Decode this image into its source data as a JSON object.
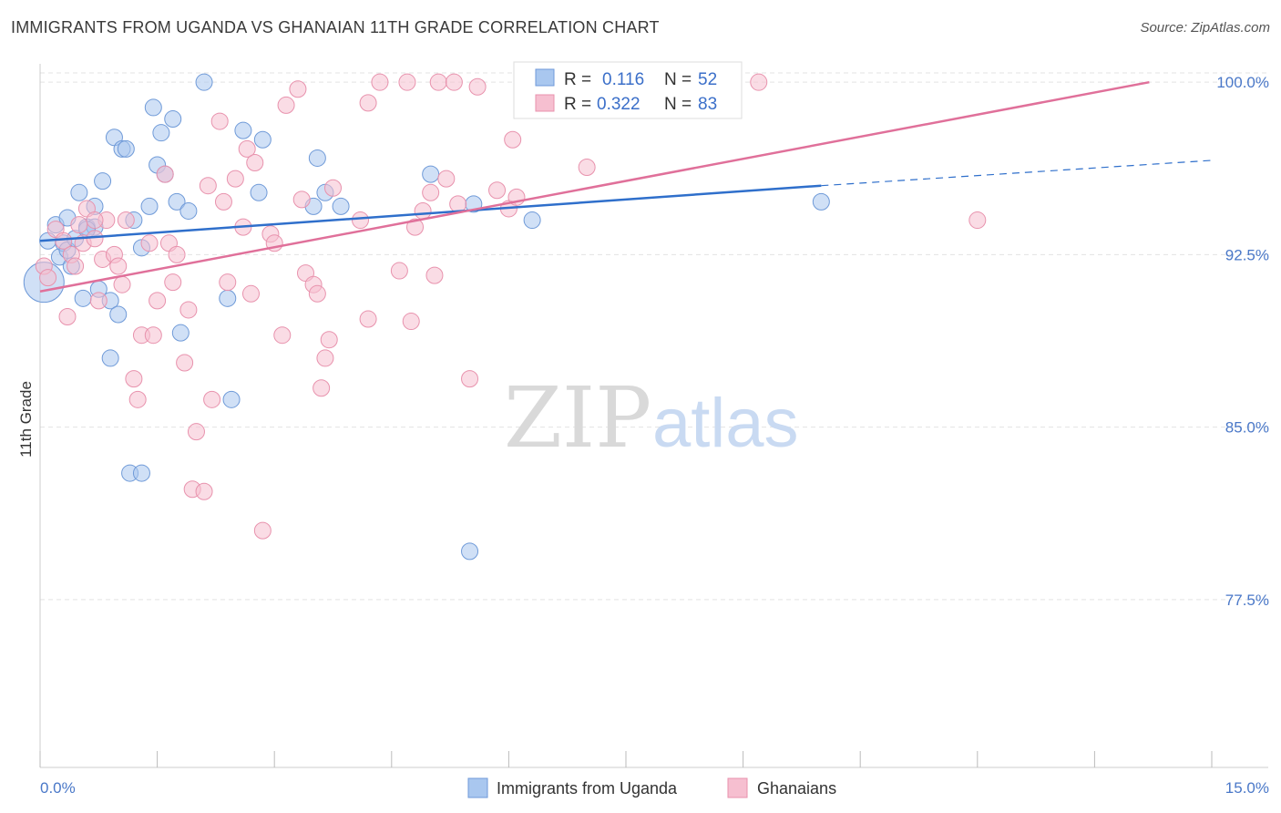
{
  "title": "IMMIGRANTS FROM UGANDA VS GHANAIAN 11TH GRADE CORRELATION CHART",
  "source": "Source: ZipAtlas.com",
  "watermark": {
    "zip": "ZIP",
    "atlas": "atlas"
  },
  "colors": {
    "blue_fill": "#a9c7ef",
    "blue_stroke": "#6f9ad8",
    "blue_line": "#2f6fcb",
    "pink_fill": "#f6bfd0",
    "pink_stroke": "#e892ad",
    "pink_line": "#e0709a",
    "grid": "#e3e3e3",
    "axis_text": "#4a78c8"
  },
  "chart_data": {
    "type": "scatter",
    "title": "IMMIGRANTS FROM UGANDA VS GHANAIAN 11TH GRADE CORRELATION CHART",
    "xlabel": "",
    "ylabel": "11th Grade",
    "xlim": [
      0,
      15
    ],
    "ylim": [
      70.2,
      100.8
    ],
    "x_tick_labels": [
      "0.0%",
      "15.0%"
    ],
    "y_ticks": [
      77.5,
      85.0,
      92.5,
      100.0
    ],
    "y_tick_labels": [
      "77.5%",
      "85.0%",
      "92.5%",
      "100.0%"
    ],
    "legend": {
      "rows": [
        {
          "r_label": "R =",
          "r_value": "0.116",
          "n_label": "N =",
          "n_value": "52"
        },
        {
          "r_label": "R =",
          "r_value": "0.322",
          "n_label": "N =",
          "n_value": "83"
        }
      ]
    },
    "series": [
      {
        "name": "Immigrants from Uganda",
        "color": "#a9c7ef",
        "trend": {
          "x": [
            0,
            10.0
          ],
          "y": [
            93.1,
            95.5
          ],
          "dashed_to_x": 15,
          "dashed_to_y": 96.6
        },
        "points": [
          [
            0.1,
            93.1
          ],
          [
            0.2,
            93.8
          ],
          [
            0.25,
            92.4
          ],
          [
            0.3,
            93.0
          ],
          [
            0.35,
            92.7
          ],
          [
            0.35,
            94.1
          ],
          [
            0.4,
            92.0
          ],
          [
            0.45,
            93.2
          ],
          [
            0.5,
            95.2
          ],
          [
            0.55,
            90.6
          ],
          [
            0.6,
            93.7
          ],
          [
            0.7,
            93.7
          ],
          [
            0.7,
            94.6
          ],
          [
            0.75,
            91.0
          ],
          [
            0.8,
            95.7
          ],
          [
            0.9,
            90.5
          ],
          [
            0.9,
            88.0
          ],
          [
            0.95,
            97.6
          ],
          [
            1.0,
            89.9
          ],
          [
            1.05,
            97.1
          ],
          [
            1.1,
            97.1
          ],
          [
            1.2,
            94.0
          ],
          [
            1.3,
            92.8
          ],
          [
            1.4,
            94.6
          ],
          [
            1.45,
            98.9
          ],
          [
            1.5,
            96.4
          ],
          [
            1.55,
            97.8
          ],
          [
            1.6,
            96.0
          ],
          [
            1.7,
            98.4
          ],
          [
            1.75,
            94.8
          ],
          [
            1.8,
            89.1
          ],
          [
            1.9,
            94.4
          ],
          [
            2.1,
            100.0
          ],
          [
            2.4,
            90.6
          ],
          [
            2.45,
            86.2
          ],
          [
            2.6,
            97.9
          ],
          [
            2.8,
            95.2
          ],
          [
            2.85,
            97.5
          ],
          [
            3.5,
            94.6
          ],
          [
            3.55,
            96.7
          ],
          [
            3.65,
            95.2
          ],
          [
            3.85,
            94.6
          ],
          [
            5.0,
            96.0
          ],
          [
            5.5,
            79.6
          ],
          [
            5.55,
            94.7
          ],
          [
            6.3,
            94.0
          ],
          [
            7.6,
            100.0
          ],
          [
            10.0,
            94.8
          ],
          [
            1.15,
            83.0
          ],
          [
            1.3,
            83.0
          ],
          [
            0.05,
            91.3
          ],
          [
            0.6,
            93.6
          ]
        ]
      },
      {
        "name": "Ghanaians",
        "color": "#f6bfd0",
        "trend": {
          "x": [
            0,
            14.2
          ],
          "y": [
            90.9,
            100.0
          ]
        },
        "points": [
          [
            0.05,
            92.0
          ],
          [
            0.1,
            91.5
          ],
          [
            0.2,
            93.6
          ],
          [
            0.3,
            93.1
          ],
          [
            0.35,
            89.8
          ],
          [
            0.4,
            92.5
          ],
          [
            0.45,
            92.0
          ],
          [
            0.5,
            93.8
          ],
          [
            0.55,
            93.0
          ],
          [
            0.6,
            94.5
          ],
          [
            0.7,
            93.2
          ],
          [
            0.75,
            90.5
          ],
          [
            0.8,
            92.3
          ],
          [
            0.85,
            94.0
          ],
          [
            0.95,
            92.5
          ],
          [
            1.0,
            92.0
          ],
          [
            1.05,
            91.2
          ],
          [
            1.1,
            94.0
          ],
          [
            1.2,
            87.1
          ],
          [
            1.25,
            86.2
          ],
          [
            1.3,
            89.0
          ],
          [
            1.4,
            93.0
          ],
          [
            1.45,
            89.0
          ],
          [
            1.5,
            90.5
          ],
          [
            1.6,
            96.0
          ],
          [
            1.65,
            93.0
          ],
          [
            1.7,
            91.3
          ],
          [
            1.75,
            92.5
          ],
          [
            1.85,
            87.8
          ],
          [
            1.9,
            90.1
          ],
          [
            2.0,
            84.8
          ],
          [
            1.95,
            82.3
          ],
          [
            2.1,
            82.2
          ],
          [
            2.15,
            95.5
          ],
          [
            2.2,
            86.2
          ],
          [
            2.3,
            98.3
          ],
          [
            2.35,
            94.8
          ],
          [
            2.4,
            91.3
          ],
          [
            2.5,
            95.8
          ],
          [
            2.6,
            93.7
          ],
          [
            2.65,
            97.1
          ],
          [
            2.7,
            90.8
          ],
          [
            2.75,
            96.5
          ],
          [
            2.85,
            80.5
          ],
          [
            2.95,
            93.4
          ],
          [
            3.0,
            93.0
          ],
          [
            3.1,
            89.0
          ],
          [
            3.15,
            99.0
          ],
          [
            3.3,
            99.7
          ],
          [
            3.35,
            94.9
          ],
          [
            3.4,
            91.7
          ],
          [
            3.5,
            91.2
          ],
          [
            3.55,
            90.8
          ],
          [
            3.6,
            86.7
          ],
          [
            3.65,
            88.0
          ],
          [
            3.7,
            88.8
          ],
          [
            3.75,
            95.4
          ],
          [
            4.1,
            94.0
          ],
          [
            4.2,
            99.1
          ],
          [
            4.2,
            89.7
          ],
          [
            4.35,
            100.0
          ],
          [
            4.6,
            91.8
          ],
          [
            4.7,
            100.0
          ],
          [
            4.75,
            89.6
          ],
          [
            4.8,
            93.7
          ],
          [
            4.9,
            94.4
          ],
          [
            5.0,
            95.2
          ],
          [
            5.05,
            91.6
          ],
          [
            5.1,
            100.0
          ],
          [
            5.2,
            95.8
          ],
          [
            5.3,
            100.0
          ],
          [
            5.35,
            94.7
          ],
          [
            5.5,
            87.1
          ],
          [
            5.6,
            99.8
          ],
          [
            5.85,
            95.3
          ],
          [
            6.0,
            94.5
          ],
          [
            6.05,
            97.5
          ],
          [
            6.1,
            95.0
          ],
          [
            6.9,
            100.0
          ],
          [
            7.0,
            96.3
          ],
          [
            9.2,
            100.0
          ],
          [
            12.0,
            94.0
          ],
          [
            0.7,
            94.0
          ]
        ]
      }
    ]
  },
  "bottom_legend": {
    "items": [
      {
        "label": "Immigrants from Uganda"
      },
      {
        "label": "Ghanaians"
      }
    ]
  }
}
